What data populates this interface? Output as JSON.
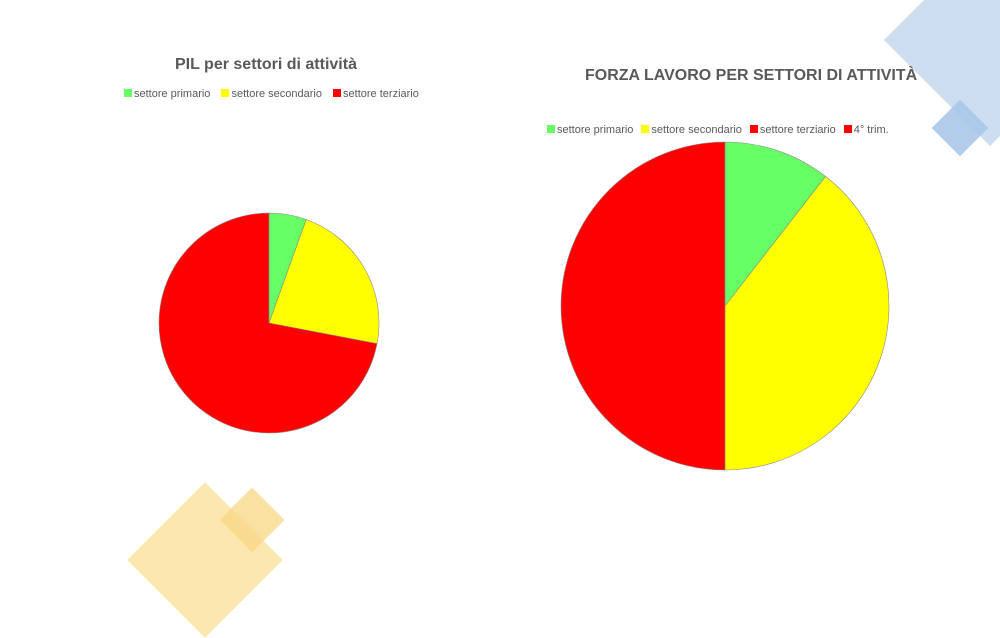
{
  "chart_data": [
    {
      "type": "pie",
      "title": "PIL per settori di attività",
      "legend_position": "top",
      "slices": [
        {
          "label": "settore primario",
          "value": 5.5,
          "color": "#66ff66"
        },
        {
          "label": "settore secondario",
          "value": 22.5,
          "color": "#ffff00"
        },
        {
          "label": "settore terziario",
          "value": 72.0,
          "color": "#ff0000"
        }
      ]
    },
    {
      "type": "pie",
      "title": "FORZA LAVORO PER SETTORI DI ATTIVITÀ",
      "legend_position": "top",
      "slices": [
        {
          "label": "settore primario",
          "value": 10.5,
          "color": "#66ff66"
        },
        {
          "label": "settore secondario",
          "value": 39.5,
          "color": "#ffff00"
        },
        {
          "label": "settore terziario",
          "value": 50.0,
          "color": "#ff0000"
        },
        {
          "label": "4° trim.",
          "value": 0,
          "color": "#ff0000"
        }
      ]
    }
  ]
}
